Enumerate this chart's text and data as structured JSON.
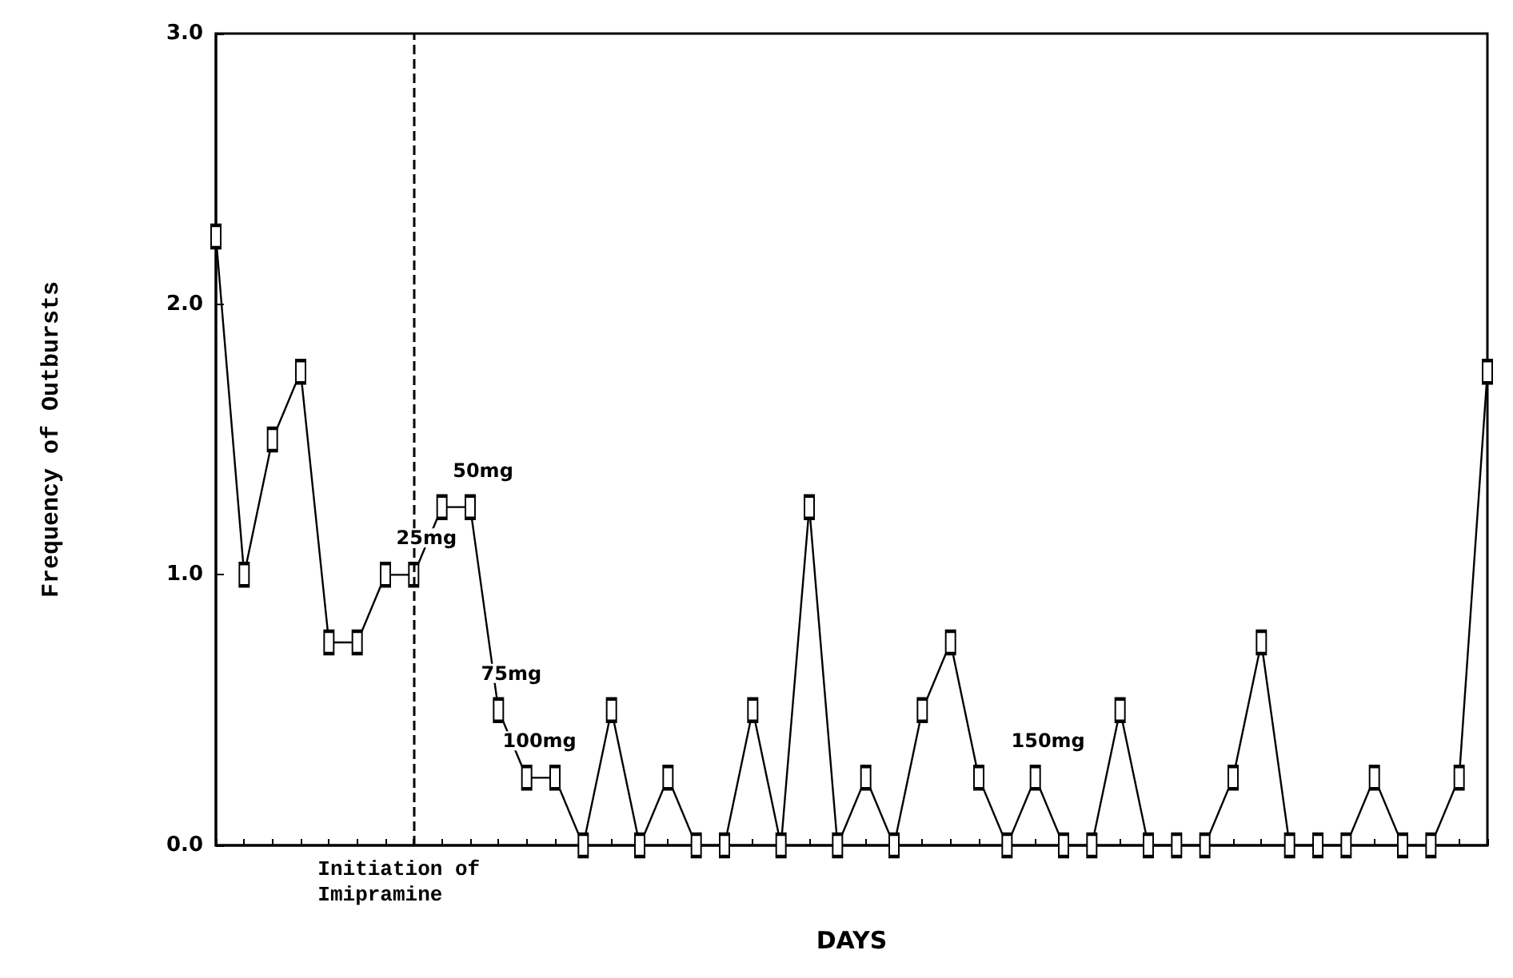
{
  "chart_data": {
    "type": "line",
    "xlabel": "DAYS",
    "ylabel": "Frequency of Outbursts",
    "categories": [
      null,
      null,
      null,
      null,
      null,
      null,
      null,
      null,
      null,
      null,
      null,
      null,
      null,
      null,
      null,
      null,
      null,
      null,
      null,
      null,
      null,
      null,
      null,
      null,
      null,
      null,
      null,
      null,
      null,
      null,
      null,
      null,
      null,
      null,
      null,
      null,
      null,
      null,
      null,
      null,
      null,
      null,
      null,
      null,
      null,
      null
    ],
    "values": [
      2.25,
      1.0,
      1.5,
      1.75,
      0.75,
      0.75,
      1.0,
      1.0,
      1.25,
      1.25,
      0.5,
      0.25,
      0.25,
      0,
      0.5,
      0,
      0.25,
      0,
      0,
      0.5,
      0,
      1.25,
      0,
      0.25,
      0,
      0.5,
      0.75,
      0.25,
      0,
      0.25,
      0,
      0,
      0.5,
      0,
      0,
      0,
      0.25,
      0.75,
      0,
      0,
      0,
      0.25,
      0,
      0,
      0.25,
      1.75
    ],
    "color": "#000000",
    "marker": "square",
    "line_style": "solid",
    "grid": false,
    "ylim": [
      0,
      3
    ],
    "yticks": [
      {
        "value": 0,
        "label": "0.0"
      },
      {
        "value": 1,
        "label": "1.0"
      },
      {
        "value": 2,
        "label": "2.0"
      },
      {
        "value": 3,
        "label": "3.0"
      }
    ],
    "annotations": [
      "Initiation of\nImipramine",
      "25mg",
      "50mg",
      "75mg",
      "100mg",
      "150mg"
    ]
  }
}
